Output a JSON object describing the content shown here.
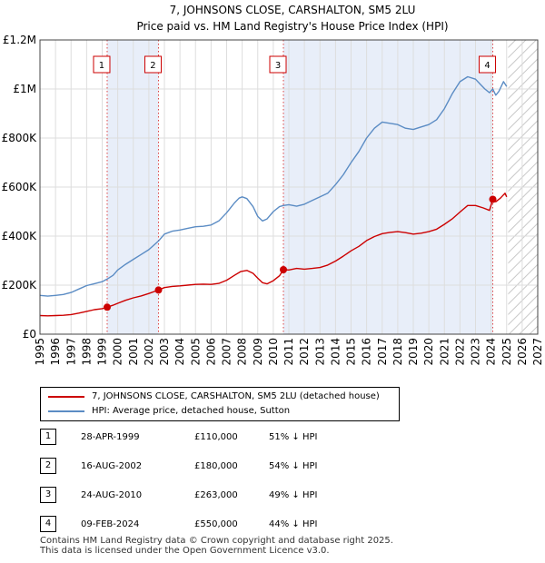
{
  "chart_data": {
    "type": "line",
    "title": "7, JOHNSONS CLOSE, CARSHALTON, SM5 2LU",
    "subtitle": "Price paid vs. HM Land Registry's House Price Index (HPI)",
    "xlim": [
      1995,
      2027
    ],
    "ylim": [
      0,
      1200000
    ],
    "x_ticks": [
      1995,
      1996,
      1997,
      1998,
      1999,
      2000,
      2001,
      2002,
      2003,
      2004,
      2005,
      2006,
      2007,
      2008,
      2009,
      2010,
      2011,
      2012,
      2013,
      2014,
      2015,
      2016,
      2017,
      2018,
      2019,
      2020,
      2021,
      2022,
      2023,
      2024,
      2025,
      2026,
      2027
    ],
    "y_ticks": [
      {
        "value": 0,
        "label": "£0"
      },
      {
        "value": 200000,
        "label": "£200K"
      },
      {
        "value": 400000,
        "label": "£400K"
      },
      {
        "value": 600000,
        "label": "£600K"
      },
      {
        "value": 800000,
        "label": "£800K"
      },
      {
        "value": 1000000,
        "label": "£1M"
      },
      {
        "value": 1200000,
        "label": "£1.2M"
      }
    ],
    "grid": true,
    "data_end_year": 2025.1,
    "shaded_ranges": [
      [
        1999.32,
        2002.62
      ],
      [
        2010.65,
        2024.11
      ]
    ],
    "series": [
      {
        "name": "7, JOHNSONS CLOSE, CARSHALTON, SM5 2LU (detached house)",
        "color": "#cc0000",
        "points": [
          [
            1995.0,
            76000
          ],
          [
            1995.5,
            75000
          ],
          [
            1996.0,
            76000
          ],
          [
            1996.5,
            77000
          ],
          [
            1997.0,
            80000
          ],
          [
            1997.5,
            86000
          ],
          [
            1998.0,
            93000
          ],
          [
            1998.5,
            100000
          ],
          [
            1999.0,
            104000
          ],
          [
            1999.32,
            110000
          ],
          [
            1999.7,
            118000
          ],
          [
            2000.0,
            126000
          ],
          [
            2000.5,
            138000
          ],
          [
            2001.0,
            148000
          ],
          [
            2001.5,
            156000
          ],
          [
            2002.0,
            166000
          ],
          [
            2002.62,
            180000
          ],
          [
            2003.0,
            190000
          ],
          [
            2003.5,
            195000
          ],
          [
            2004.0,
            197000
          ],
          [
            2004.5,
            200000
          ],
          [
            2005.0,
            203000
          ],
          [
            2005.5,
            204000
          ],
          [
            2006.0,
            203000
          ],
          [
            2006.5,
            207000
          ],
          [
            2007.0,
            220000
          ],
          [
            2007.5,
            240000
          ],
          [
            2007.9,
            255000
          ],
          [
            2008.3,
            260000
          ],
          [
            2008.7,
            248000
          ],
          [
            2009.0,
            228000
          ],
          [
            2009.3,
            210000
          ],
          [
            2009.6,
            205000
          ],
          [
            2010.0,
            218000
          ],
          [
            2010.4,
            238000
          ],
          [
            2010.65,
            263000
          ],
          [
            2011.0,
            262000
          ],
          [
            2011.5,
            268000
          ],
          [
            2012.0,
            265000
          ],
          [
            2012.5,
            268000
          ],
          [
            2013.0,
            272000
          ],
          [
            2013.5,
            282000
          ],
          [
            2014.0,
            298000
          ],
          [
            2014.5,
            318000
          ],
          [
            2015.0,
            340000
          ],
          [
            2015.5,
            358000
          ],
          [
            2016.0,
            382000
          ],
          [
            2016.5,
            398000
          ],
          [
            2017.0,
            410000
          ],
          [
            2017.5,
            415000
          ],
          [
            2018.0,
            418000
          ],
          [
            2018.5,
            414000
          ],
          [
            2019.0,
            408000
          ],
          [
            2019.5,
            412000
          ],
          [
            2020.0,
            418000
          ],
          [
            2020.5,
            428000
          ],
          [
            2021.0,
            448000
          ],
          [
            2021.5,
            470000
          ],
          [
            2022.0,
            498000
          ],
          [
            2022.5,
            525000
          ],
          [
            2023.0,
            525000
          ],
          [
            2023.5,
            515000
          ],
          [
            2023.9,
            505000
          ],
          [
            2024.11,
            550000
          ],
          [
            2024.3,
            540000
          ],
          [
            2024.6,
            555000
          ],
          [
            2024.9,
            575000
          ],
          [
            2025.0,
            560000
          ]
        ]
      },
      {
        "name": "HPI: Average price, detached house, Sutton",
        "color": "#5b8cc4",
        "points": [
          [
            1995.0,
            158000
          ],
          [
            1995.5,
            155000
          ],
          [
            1996.0,
            158000
          ],
          [
            1996.5,
            162000
          ],
          [
            1997.0,
            170000
          ],
          [
            1997.5,
            184000
          ],
          [
            1998.0,
            198000
          ],
          [
            1998.5,
            206000
          ],
          [
            1999.0,
            214000
          ],
          [
            1999.32,
            225000
          ],
          [
            1999.7,
            240000
          ],
          [
            2000.0,
            262000
          ],
          [
            2000.5,
            285000
          ],
          [
            2001.0,
            305000
          ],
          [
            2001.5,
            325000
          ],
          [
            2002.0,
            345000
          ],
          [
            2002.62,
            380000
          ],
          [
            2003.0,
            408000
          ],
          [
            2003.5,
            420000
          ],
          [
            2004.0,
            425000
          ],
          [
            2004.5,
            432000
          ],
          [
            2005.0,
            438000
          ],
          [
            2005.5,
            440000
          ],
          [
            2006.0,
            445000
          ],
          [
            2006.5,
            462000
          ],
          [
            2007.0,
            495000
          ],
          [
            2007.5,
            535000
          ],
          [
            2007.8,
            555000
          ],
          [
            2008.0,
            560000
          ],
          [
            2008.3,
            553000
          ],
          [
            2008.7,
            520000
          ],
          [
            2009.0,
            480000
          ],
          [
            2009.3,
            462000
          ],
          [
            2009.6,
            470000
          ],
          [
            2010.0,
            500000
          ],
          [
            2010.4,
            520000
          ],
          [
            2010.65,
            525000
          ],
          [
            2011.0,
            528000
          ],
          [
            2011.5,
            522000
          ],
          [
            2012.0,
            530000
          ],
          [
            2012.5,
            545000
          ],
          [
            2013.0,
            560000
          ],
          [
            2013.5,
            575000
          ],
          [
            2014.0,
            610000
          ],
          [
            2014.5,
            650000
          ],
          [
            2015.0,
            700000
          ],
          [
            2015.5,
            745000
          ],
          [
            2016.0,
            800000
          ],
          [
            2016.5,
            840000
          ],
          [
            2017.0,
            865000
          ],
          [
            2017.5,
            860000
          ],
          [
            2018.0,
            855000
          ],
          [
            2018.5,
            840000
          ],
          [
            2019.0,
            835000
          ],
          [
            2019.5,
            845000
          ],
          [
            2020.0,
            855000
          ],
          [
            2020.5,
            875000
          ],
          [
            2021.0,
            920000
          ],
          [
            2021.5,
            980000
          ],
          [
            2022.0,
            1030000
          ],
          [
            2022.5,
            1050000
          ],
          [
            2023.0,
            1040000
          ],
          [
            2023.3,
            1020000
          ],
          [
            2023.6,
            1000000
          ],
          [
            2023.9,
            985000
          ],
          [
            2024.11,
            1000000
          ],
          [
            2024.3,
            975000
          ],
          [
            2024.5,
            990000
          ],
          [
            2024.8,
            1030000
          ],
          [
            2025.0,
            1010000
          ]
        ]
      }
    ],
    "markers": [
      {
        "id": "1",
        "x": 1999.32,
        "y": 110000
      },
      {
        "id": "2",
        "x": 2002.62,
        "y": 180000
      },
      {
        "id": "3",
        "x": 2010.65,
        "y": 263000
      },
      {
        "id": "4",
        "x": 2024.11,
        "y": 550000
      }
    ]
  },
  "legend": {
    "property_label": "7, JOHNSONS CLOSE, CARSHALTON, SM5 2LU (detached house)",
    "hpi_label": "HPI: Average price, detached house, Sutton",
    "property_color": "#cc0000",
    "hpi_color": "#5b8cc4"
  },
  "sales": [
    {
      "num": "1",
      "date": "28-APR-1999",
      "price": "£110,000",
      "hpi_diff": "51% ↓ HPI"
    },
    {
      "num": "2",
      "date": "16-AUG-2002",
      "price": "£180,000",
      "hpi_diff": "54% ↓ HPI"
    },
    {
      "num": "3",
      "date": "24-AUG-2010",
      "price": "£263,000",
      "hpi_diff": "49% ↓ HPI"
    },
    {
      "num": "4",
      "date": "09-FEB-2024",
      "price": "£550,000",
      "hpi_diff": "44% ↓ HPI"
    }
  ],
  "footer": {
    "line1": "Contains HM Land Registry data © Crown copyright and database right 2025.",
    "line2": "This data is licensed under the Open Government Licence v3.0."
  }
}
